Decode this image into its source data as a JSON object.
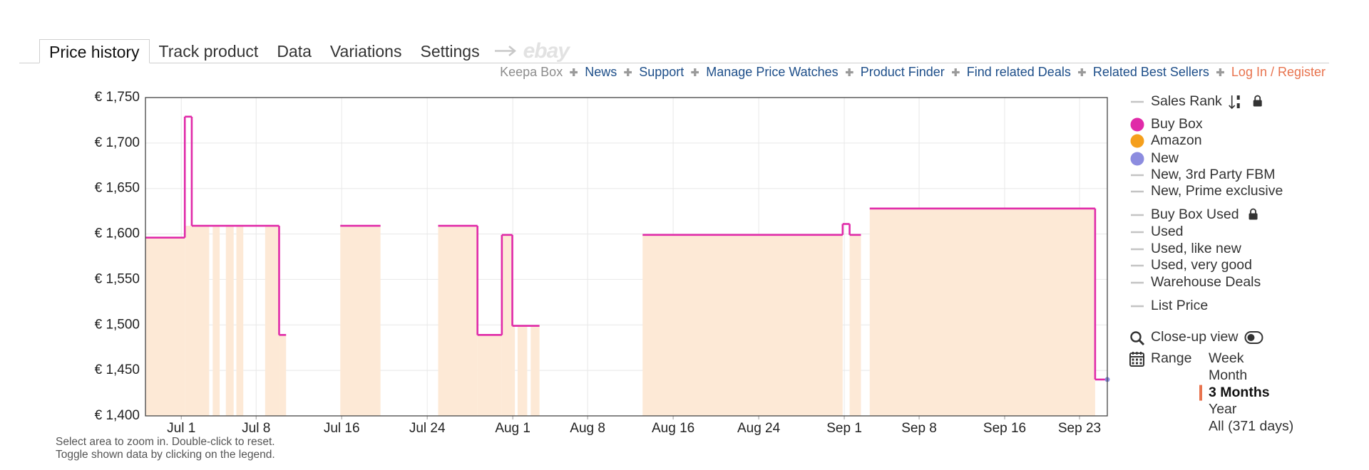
{
  "tabs": [
    {
      "text": "Price history",
      "active": true
    },
    {
      "text": "Track product",
      "active": false
    },
    {
      "text": "Data",
      "active": false
    },
    {
      "text": "Variations",
      "active": false
    },
    {
      "text": "Settings",
      "active": false
    }
  ],
  "ebay": "ebay",
  "links": [
    {
      "text": "Keepa Box",
      "color": "#8c8c8c"
    },
    {
      "text": "News",
      "color": "#1d4e89"
    },
    {
      "text": "Support",
      "color": "#1d4e89"
    },
    {
      "text": "Manage Price Watches",
      "color": "#1d4e89"
    },
    {
      "text": "Product Finder",
      "color": "#1d4e89"
    },
    {
      "text": "Find related Deals",
      "color": "#1d4e89"
    },
    {
      "text": "Related Best Sellers",
      "color": "#1d4e89"
    },
    {
      "text": "Log In / Register",
      "color": "#e8734e"
    }
  ],
  "chart_data": {
    "type": "step",
    "xlim": [
      -3.35,
      86.6
    ],
    "xticks": [
      {
        "value": 0,
        "label": "Jul 1"
      },
      {
        "value": 7,
        "label": "Jul 8"
      },
      {
        "value": 15,
        "label": "Jul 16"
      },
      {
        "value": 23,
        "label": "Jul 24"
      },
      {
        "value": 31,
        "label": "Aug 1"
      },
      {
        "value": 38,
        "label": "Aug 8"
      },
      {
        "value": 46,
        "label": "Aug 16"
      },
      {
        "value": 54,
        "label": "Aug 24"
      },
      {
        "value": 62,
        "label": "Sep 1"
      },
      {
        "value": 69,
        "label": "Sep 8"
      },
      {
        "value": 77,
        "label": "Sep 16"
      },
      {
        "value": 84,
        "label": "Sep 23"
      }
    ],
    "ylim": [
      1400,
      1750
    ],
    "yticks": [
      {
        "value": 1400,
        "label": "€ 1,400"
      },
      {
        "value": 1450,
        "label": "€ 1,450"
      },
      {
        "value": 1500,
        "label": "€ 1,500"
      },
      {
        "value": 1550,
        "label": "€ 1,550"
      },
      {
        "value": 1600,
        "label": "€ 1,600"
      },
      {
        "value": 1650,
        "label": "€ 1,650"
      },
      {
        "value": 1700,
        "label": "€ 1,700"
      },
      {
        "value": 1750,
        "label": "€ 1,750"
      }
    ],
    "grid": true,
    "series": [
      {
        "name": "Buy Box",
        "color": "#e02aa8",
        "style": "step-line",
        "x": [
          -3.35,
          0.33,
          0.98,
          9.15,
          9.8,
          14.87,
          18.63,
          24.02,
          27.7,
          29.98,
          30.96,
          33.5,
          43.14,
          61.85,
          62.5,
          63.56,
          64.38,
          85.46,
          86.6
        ],
        "values": [
          1596,
          1729,
          1609,
          1489,
          null,
          1609,
          null,
          1609,
          1489,
          1599,
          1499,
          null,
          1599,
          1611,
          1599,
          null,
          1628,
          1440,
          1440
        ]
      },
      {
        "name": "Amazon",
        "color": "#f59f1c",
        "fill": "#fde9d6",
        "style": "step-area",
        "x": [
          -3.35,
          0.33,
          2.61,
          2.94,
          3.59,
          4.17,
          4.9,
          5.15,
          5.8,
          7.84,
          9.15,
          9.8,
          14.87,
          18.63,
          24.02,
          27.7,
          29.98,
          30.96,
          31.2,
          31.45,
          32.35,
          32.68,
          33.5,
          43.14,
          61.85,
          62.5,
          63.56,
          64.38,
          85.46
        ],
        "values": [
          1596,
          1609,
          null,
          1609,
          null,
          1609,
          null,
          1609,
          null,
          1609,
          1489,
          null,
          1609,
          null,
          1609,
          1489,
          1599,
          1499,
          null,
          1499,
          null,
          1499,
          null,
          1599,
          null,
          1599,
          null,
          1628,
          null
        ]
      }
    ]
  },
  "legend": {
    "before": [
      {
        "name": "Sales Rank",
        "marker": "line",
        "color": "#c4c4c4",
        "sort_icon": true,
        "lock": true
      }
    ],
    "after": [
      {
        "name": "New",
        "marker": "dot",
        "color": "#8c8cdf"
      },
      {
        "name": "New, 3rd Party FBM",
        "marker": "line",
        "color": "#c4c4c4"
      },
      {
        "name": "New, Prime exclusive",
        "marker": "line",
        "color": "#c4c4c4"
      },
      {
        "name": "Buy Box Used",
        "marker": "line",
        "color": "#c4c4c4",
        "lock": true
      },
      {
        "name": "Used",
        "marker": "line",
        "color": "#c4c4c4"
      },
      {
        "name": "Used, like new",
        "marker": "line",
        "color": "#c4c4c4"
      },
      {
        "name": "Used, very good",
        "marker": "line",
        "color": "#c4c4c4"
      },
      {
        "name": "Warehouse Deals",
        "marker": "line",
        "color": "#c4c4c4"
      },
      {
        "name": "List Price",
        "marker": "line",
        "color": "#c4c4c4"
      }
    ]
  },
  "closeup": "Close-up view",
  "range": {
    "label": "Range",
    "options": [
      "Week",
      "Month",
      "3 Months",
      "Year",
      "All (371 days)"
    ],
    "selected": 2,
    "accent": "#e8734e"
  },
  "notes": [
    "Select area to zoom in. Double-click to reset.",
    "Toggle shown data by clicking on the legend."
  ]
}
